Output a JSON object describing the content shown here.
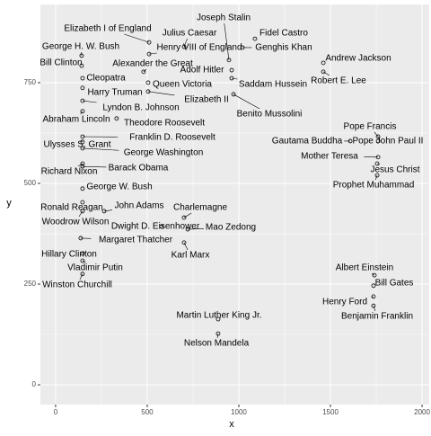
{
  "chart_data": {
    "type": "scatter",
    "xlabel": "x",
    "ylabel": "y",
    "labels": [
      "Joseph Stalin",
      "Elizabeth I of England",
      "Julius Caesar",
      "Fidel Castro",
      "Henry VIII of England",
      "Genghis Khan",
      "George H. W. Bush",
      "Bill Clinton",
      "Alexander the Great",
      "Andrew Jackson",
      "Cleopatra",
      "Adolf Hitler",
      "Robert E. Lee",
      "Queen Victoria",
      "Saddam Hussein",
      "Harry Truman",
      "Elizabeth II",
      "Benito Mussolini",
      "Lyndon B. Johnson",
      "Abraham Lincoln",
      "Theodore Roosevelt",
      "Franklin D. Roosevelt",
      "Ulysses S. Grant",
      "George Washington",
      "Richard Nixon",
      "Barack Obama",
      "George W. Bush",
      "John Adams",
      "Charlemagne",
      "Ronald Reagan",
      "Woodrow Wilson",
      "Dwight D. Eisenhower",
      "Mao Zedong",
      "Margaret Thatcher",
      "Hillary Clinton",
      "Karl Marx",
      "Vladimir Putin",
      "Albert Einstein",
      "Bill Gates",
      "Winston Churchill",
      "Henry Ford",
      "Benjamin Franklin",
      "Martin Luther King Jr.",
      "Nelson Mandela",
      "Pope Francis",
      "Gautama Buddha",
      "Pope John Paul II",
      "Mother Teresa",
      "Jesus Christ",
      "Prophet Muhammad"
    ],
    "x": [
      946,
      510,
      701,
      1088,
      510,
      1020,
      142,
      142,
      480,
      1461,
      147,
      961,
      1461,
      505,
      961,
      147,
      505,
      971,
      147,
      147,
      333,
      147,
      147,
      147,
      147,
      147,
      147,
      265,
      701,
      147,
      147,
      578,
      721,
      137,
      147,
      701,
      147,
      1740,
      1735,
      147,
      1735,
      1735,
      887,
      887,
      1760,
      1608,
      1760,
      1760,
      1755,
      1755
    ],
    "y": [
      806,
      850,
      839,
      859,
      821,
      837,
      817,
      792,
      777,
      799,
      761,
      781,
      777,
      750,
      761,
      737,
      728,
      721,
      705,
      679,
      661,
      616,
      603,
      587,
      549,
      542,
      487,
      431,
      415,
      453,
      431,
      393,
      386,
      364,
      326,
      353,
      308,
      272,
      246,
      275,
      219,
      196,
      163,
      127,
      616,
      605,
      605,
      565,
      549,
      520
    ],
    "xlim": [
      -83,
      2039
    ],
    "ylim": [
      -49,
      944
    ],
    "xticks": [
      0,
      500,
      1000,
      1500,
      2000
    ],
    "yticks": [
      0,
      250,
      500,
      750
    ],
    "grid": true
  }
}
